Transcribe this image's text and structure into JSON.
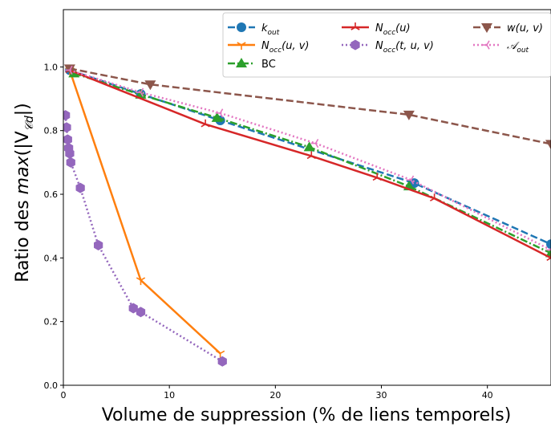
{
  "chart_data": {
    "type": "line",
    "title": "",
    "xlabel": "Volume de suppression (% de liens temporels)",
    "ylabel": "Ratio des max(|V_𝒞d|)",
    "xlim": [
      0,
      46
    ],
    "ylim": [
      0.0,
      1.18
    ],
    "xticks": [
      0,
      10,
      20,
      30,
      40
    ],
    "yticks": [
      0.0,
      0.2,
      0.4,
      0.6,
      0.8,
      1.0
    ],
    "grid": false,
    "legend_position": "top-right",
    "series": [
      {
        "name": "k_out",
        "color": "#1f77b4",
        "line_style": "dashed",
        "marker": "circle",
        "points": [
          [
            0.6,
            0.99
          ],
          [
            7.3,
            0.915
          ],
          [
            14.8,
            0.832
          ],
          [
            33.1,
            0.635
          ],
          [
            46.0,
            0.443
          ]
        ]
      },
      {
        "name": "N_occ(u, v)",
        "color": "#ff7f0e",
        "line_style": "solid",
        "marker": "tri_down",
        "points": [
          [
            0.6,
            0.99
          ],
          [
            7.3,
            0.33
          ],
          [
            14.8,
            0.1
          ]
        ]
      },
      {
        "name": "BC",
        "color": "#2ca02c",
        "line_style": "dashdot",
        "marker": "triangle_up",
        "points": [
          [
            1.0,
            0.98
          ],
          [
            7.3,
            0.913
          ],
          [
            14.5,
            0.84
          ],
          [
            23.2,
            0.748
          ],
          [
            32.6,
            0.625
          ],
          [
            46.0,
            0.415
          ]
        ]
      },
      {
        "name": "N_occ(u)",
        "color": "#d62728",
        "line_style": "solid",
        "marker": "tri_up",
        "points": [
          [
            0.6,
            0.99
          ],
          [
            13.4,
            0.82
          ],
          [
            23.4,
            0.72
          ],
          [
            29.6,
            0.652
          ],
          [
            35.0,
            0.587
          ],
          [
            46.0,
            0.4
          ]
        ]
      },
      {
        "name": "N_occ(t, u, v)",
        "color": "#9467bd",
        "line_style": "dotted",
        "marker": "hexagon",
        "points": [
          [
            0.2,
            0.848
          ],
          [
            0.3,
            0.81
          ],
          [
            0.4,
            0.772
          ],
          [
            0.5,
            0.745
          ],
          [
            0.6,
            0.728
          ],
          [
            0.7,
            0.7
          ],
          [
            1.6,
            0.62
          ],
          [
            3.3,
            0.44
          ],
          [
            6.6,
            0.242
          ],
          [
            7.3,
            0.23
          ],
          [
            15.0,
            0.075
          ]
        ]
      },
      {
        "name": "w(u, v)",
        "color": "#8c564b",
        "line_style": "dashed",
        "marker": "triangle_down",
        "points": [
          [
            0.6,
            0.995
          ],
          [
            8.2,
            0.945
          ],
          [
            32.6,
            0.85
          ],
          [
            46.0,
            0.758
          ]
        ]
      },
      {
        "name": "𝒜_out",
        "color": "#e377c2",
        "line_style": "dotted",
        "marker": "tri_left",
        "points": [
          [
            0.6,
            0.99
          ],
          [
            7.3,
            0.92
          ],
          [
            14.8,
            0.855
          ],
          [
            23.8,
            0.76
          ],
          [
            32.8,
            0.645
          ],
          [
            46.0,
            0.425
          ]
        ]
      }
    ]
  },
  "legend_items": [
    {
      "label_base": "k",
      "label_sub": "out",
      "label_rest": ""
    },
    {
      "label_base": "N",
      "label_sub": "occ",
      "label_rest": "(u, v)"
    },
    {
      "label_base": "BC",
      "label_sub": "",
      "label_rest": ""
    },
    {
      "label_base": "N",
      "label_sub": "occ",
      "label_rest": "(u)"
    },
    {
      "label_base": "N",
      "label_sub": "occ",
      "label_rest": "(t, u, v)"
    },
    {
      "label_base": "",
      "label_sub": "",
      "label_rest": "w(u, v)"
    },
    {
      "label_base": "𝒜",
      "label_sub": "out",
      "label_rest": ""
    }
  ],
  "axis_text": {
    "ylabel_prefix": "Ratio des ",
    "ylabel_math": "max",
    "ylabel_open": "(|V",
    "ylabel_sub": "𝒞d",
    "ylabel_close": "|)"
  }
}
